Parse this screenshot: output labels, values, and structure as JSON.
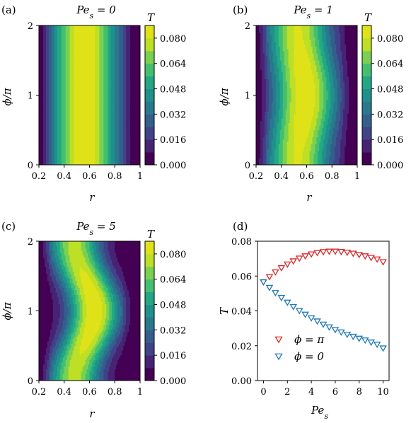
{
  "chart_data": [
    {
      "type": "heatmap",
      "panel_label": "(a)",
      "title": "Pe_s = 0",
      "xlabel": "r",
      "ylabel": "ϕ/π",
      "xlim": [
        0.2,
        1.0
      ],
      "ylim": [
        0,
        2
      ],
      "xticks": [
        "0.2",
        "0.4",
        "0.6",
        "0.8",
        "1"
      ],
      "yticks": [
        "0",
        "1",
        "2"
      ],
      "colorbar": {
        "label": "T",
        "ticks": [
          "0.000",
          "0.016",
          "0.032",
          "0.048",
          "0.064",
          "0.080"
        ],
        "range": [
          0,
          0.088
        ]
      },
      "Pe_s": 0
    },
    {
      "type": "heatmap",
      "panel_label": "(b)",
      "title": "Pe_s = 1",
      "xlabel": "r",
      "ylabel": "ϕ/π",
      "xlim": [
        0.2,
        1.0
      ],
      "ylim": [
        0,
        2
      ],
      "xticks": [
        "0.2",
        "0.4",
        "0.6",
        "0.8",
        "1"
      ],
      "yticks": [
        "0",
        "1",
        "2"
      ],
      "colorbar": {
        "label": "T",
        "ticks": [
          "0.000",
          "0.016",
          "0.032",
          "0.048",
          "0.064",
          "0.080"
        ],
        "range": [
          0,
          0.088
        ]
      },
      "Pe_s": 1
    },
    {
      "type": "heatmap",
      "panel_label": "(c)",
      "title": "Pe_s = 5",
      "xlabel": "r",
      "ylabel": "ϕ/π",
      "xlim": [
        0.2,
        1.0
      ],
      "ylim": [
        0,
        2
      ],
      "xticks": [
        "0.2",
        "0.4",
        "0.6",
        "0.8",
        "1"
      ],
      "yticks": [
        "0",
        "1",
        "2"
      ],
      "colorbar": {
        "label": "T",
        "ticks": [
          "0.000",
          "0.016",
          "0.032",
          "0.048",
          "0.064",
          "0.080"
        ],
        "range": [
          0,
          0.088
        ]
      },
      "Pe_s": 5
    },
    {
      "type": "scatter",
      "panel_label": "(d)",
      "xlabel": "Pe_s",
      "ylabel": "T",
      "xlim": [
        -0.5,
        10.5
      ],
      "ylim": [
        0,
        0.08
      ],
      "xticks": [
        "0",
        "2",
        "4",
        "6",
        "8",
        "10"
      ],
      "yticks": [
        "0.00",
        "0.02",
        "0.04",
        "0.06",
        "0.08"
      ],
      "legend_placement": "lower-left",
      "x": [
        0,
        0.5,
        1,
        1.5,
        2,
        2.5,
        3,
        3.5,
        4,
        4.5,
        5,
        5.5,
        6,
        6.5,
        7,
        7.5,
        8,
        8.5,
        9,
        9.5,
        10
      ],
      "series": [
        {
          "name": "ϕ = π",
          "color": "#d62728",
          "marker": "triangle-down",
          "values": [
            0.0565,
            0.0595,
            0.0622,
            0.0646,
            0.0667,
            0.0685,
            0.0701,
            0.0714,
            0.0725,
            0.0733,
            0.0738,
            0.0741,
            0.0741,
            0.0739,
            0.0735,
            0.0729,
            0.0722,
            0.0714,
            0.0705,
            0.0696,
            0.068
          ]
        },
        {
          "name": "ϕ = 0",
          "color": "#1f77b4",
          "marker": "triangle-down",
          "values": [
            0.0565,
            0.0533,
            0.0503,
            0.0475,
            0.0448,
            0.0423,
            0.04,
            0.0379,
            0.0358,
            0.034,
            0.0322,
            0.0306,
            0.0291,
            0.0277,
            0.0264,
            0.0252,
            0.0241,
            0.0231,
            0.0219,
            0.0207,
            0.0185
          ]
        }
      ]
    }
  ]
}
